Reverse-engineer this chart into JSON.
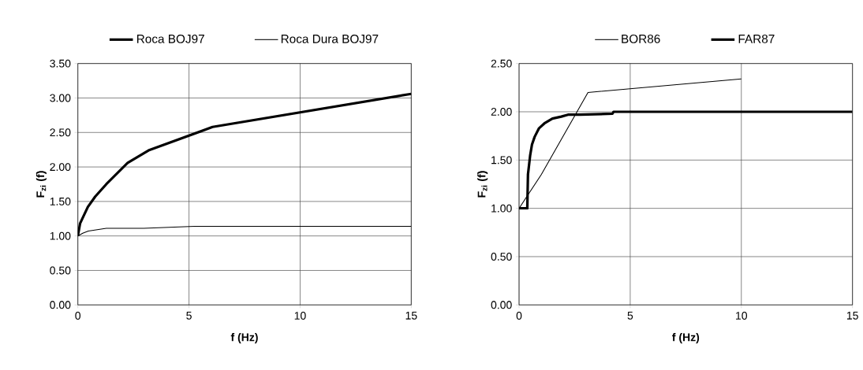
{
  "chart_data": [
    {
      "type": "line",
      "xlabel": "f (Hz)",
      "ylabel": "F$_{zi}$ (f)",
      "xlim": [
        0,
        15
      ],
      "ylim": [
        0,
        3.5
      ],
      "xticks": [
        0,
        5,
        10,
        15
      ],
      "yticks": [
        {
          "value": 0,
          "label": "0.00"
        },
        {
          "value": 0.5,
          "label": "0.50"
        },
        {
          "value": 1,
          "label": "1.00"
        },
        {
          "value": 1.5,
          "label": "1.50"
        },
        {
          "value": 2,
          "label": "2.00"
        },
        {
          "value": 2.5,
          "label": "2.50"
        },
        {
          "value": 3,
          "label": "3.00"
        },
        {
          "value": 3.5,
          "label": "3.50"
        }
      ],
      "grid": true,
      "legend": "top",
      "line_style": "solid",
      "series": [
        {
          "name": "Roca BOJ97",
          "color": "#000000",
          "x": [
            0,
            0.1,
            0.45,
            0.78,
            1.28,
            2.24,
            3.18,
            6.06,
            15
          ],
          "values": [
            1.0,
            1.18,
            1.42,
            1.57,
            1.75,
            2.06,
            2.24,
            2.58,
            3.06
          ]
        },
        {
          "name": "Roca Dura BOJ97",
          "color": "#000000",
          "x": [
            0,
            0.22,
            0.47,
            1.28,
            2.96,
            5.25,
            15
          ],
          "values": [
            1.0,
            1.04,
            1.07,
            1.11,
            1.11,
            1.14,
            1.14
          ]
        }
      ]
    },
    {
      "type": "line",
      "xlabel": "f (Hz)",
      "ylabel": "F$_{zi}$ (f)",
      "xlim": [
        0,
        15
      ],
      "ylim": [
        0,
        2.5
      ],
      "xticks": [
        0,
        5,
        10,
        15
      ],
      "yticks": [
        {
          "value": 0,
          "label": "0.00"
        },
        {
          "value": 0.5,
          "label": "0.50"
        },
        {
          "value": 1,
          "label": "1.00"
        },
        {
          "value": 1.5,
          "label": "1.50"
        },
        {
          "value": 2,
          "label": "2.00"
        },
        {
          "value": 2.5,
          "label": "2.50"
        }
      ],
      "grid": true,
      "legend": "top",
      "line_style": "solid",
      "series": [
        {
          "name": "BOR86",
          "color": "#000000",
          "x": [
            0,
            1,
            3.1,
            10
          ],
          "values": [
            1.0,
            1.35,
            2.2,
            2.34
          ]
        },
        {
          "name": "FAR87",
          "color": "#000000",
          "x": [
            0,
            0.37,
            0.4,
            0.5,
            0.58,
            0.7,
            0.9,
            1.14,
            1.5,
            1.9,
            2.2,
            2.75,
            4.2,
            4.25,
            15
          ],
          "values": [
            1.0,
            1.0,
            1.35,
            1.55,
            1.66,
            1.74,
            1.83,
            1.88,
            1.93,
            1.95,
            1.97,
            1.97,
            1.98,
            2.0,
            2.0
          ]
        }
      ]
    }
  ]
}
